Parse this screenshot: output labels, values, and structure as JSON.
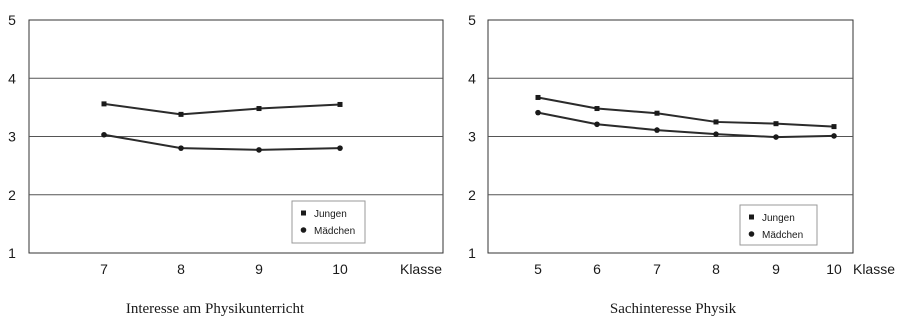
{
  "chart_data": [
    {
      "type": "line",
      "title": "Interesse am Physikunterricht",
      "xlabel": "Klasse",
      "ylabel": "",
      "categories": [
        "7",
        "8",
        "9",
        "10"
      ],
      "ylim": [
        1,
        5
      ],
      "yticks": [
        "1",
        "2",
        "3",
        "4",
        "5"
      ],
      "grid": true,
      "legend_position": "bottom-right",
      "series": [
        {
          "name": "Jungen",
          "marker": "square",
          "values": [
            3.56,
            3.38,
            3.48,
            3.55
          ]
        },
        {
          "name": "Mädchen",
          "marker": "circle",
          "values": [
            3.03,
            2.8,
            2.77,
            2.8
          ]
        }
      ]
    },
    {
      "type": "line",
      "title": "Sachinteresse Physik",
      "xlabel": "Klasse",
      "ylabel": "",
      "categories": [
        "5",
        "6",
        "7",
        "8",
        "9",
        "10"
      ],
      "ylim": [
        1,
        5
      ],
      "yticks": [
        "1",
        "2",
        "3",
        "4",
        "5"
      ],
      "grid": true,
      "legend_position": "bottom-right",
      "series": [
        {
          "name": "Jungen",
          "marker": "square",
          "values": [
            3.67,
            3.48,
            3.4,
            3.25,
            3.22,
            3.17
          ]
        },
        {
          "name": "Mädchen",
          "marker": "circle",
          "values": [
            3.41,
            3.21,
            3.11,
            3.04,
            2.99,
            3.01
          ]
        }
      ]
    }
  ]
}
